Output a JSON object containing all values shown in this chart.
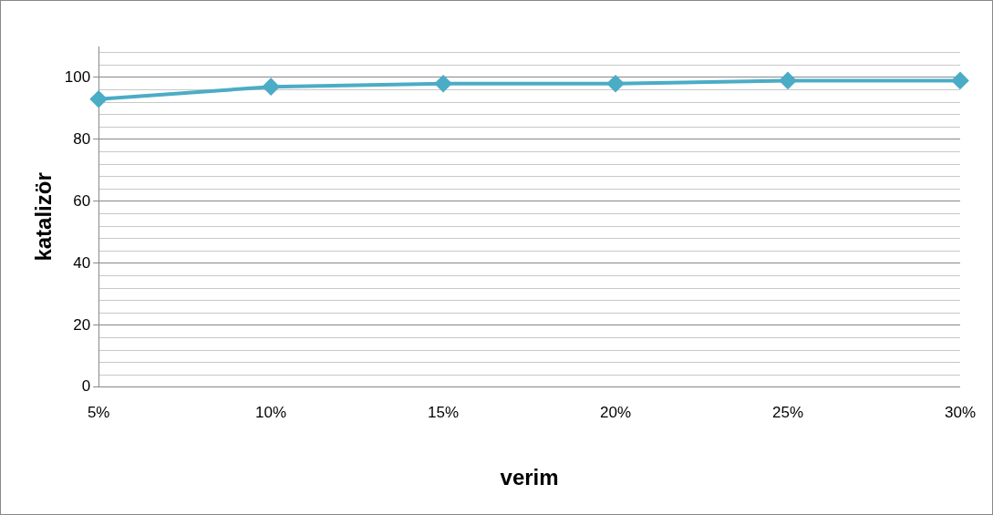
{
  "chart_data": {
    "type": "line",
    "xlabel": "verim",
    "ylabel": "katalizör",
    "categories": [
      "5%",
      "10%",
      "15%",
      "20%",
      "25%",
      "30%"
    ],
    "series": [
      {
        "color": "#4bacc6",
        "values": [
          93,
          97,
          98,
          98,
          99,
          99
        ]
      }
    ],
    "ylim": [
      0,
      110
    ],
    "yticks": [
      0,
      {
        "value": 4,
        "label": null
      },
      {
        "value": 8,
        "label": null
      },
      {
        "value": 12,
        "label": null
      },
      {
        "value": 16,
        "label": null
      },
      20,
      {
        "value": 24,
        "label": null
      },
      {
        "value": 28,
        "label": null
      },
      {
        "value": 32,
        "label": null
      },
      {
        "value": 36,
        "label": null
      },
      40,
      {
        "value": 44,
        "label": null
      },
      {
        "value": 48,
        "label": null
      },
      {
        "value": 52,
        "label": null
      },
      {
        "value": 56,
        "label": null
      },
      60,
      {
        "value": 64,
        "label": null
      },
      {
        "value": 68,
        "label": null
      },
      {
        "value": 72,
        "label": null
      },
      {
        "value": 76,
        "label": null
      },
      80,
      {
        "value": 84,
        "label": null
      },
      {
        "value": 88,
        "label": null
      },
      {
        "value": 92,
        "label": null
      },
      {
        "value": 96,
        "label": null
      },
      100,
      {
        "value": 104,
        "label": null
      },
      {
        "value": 108,
        "label": null
      }
    ],
    "grid": "y",
    "legend": false,
    "marker": "diamond",
    "line_style": "solid"
  }
}
